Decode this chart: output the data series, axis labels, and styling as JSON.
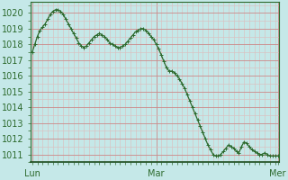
{
  "background_color": "#c5e8e8",
  "plot_bg_color": "#c5e8e8",
  "grid_color_major": "#cc8888",
  "grid_color_minor": "#ddbbbb",
  "line_color": "#2d6a2d",
  "marker_color": "#2d6a2d",
  "tick_label_color": "#2d6a2d",
  "axis_label_color": "#2d6a2d",
  "ylim": [
    1010.5,
    1020.7
  ],
  "yticks": [
    1011,
    1012,
    1013,
    1014,
    1015,
    1016,
    1017,
    1018,
    1019,
    1020
  ],
  "x_tick_positions": [
    0,
    48,
    95
  ],
  "x_label_names": [
    "Lun",
    "Mar",
    "Mer"
  ],
  "n_points": 96,
  "values": [
    1017.5,
    1018.0,
    1018.5,
    1018.9,
    1019.1,
    1019.3,
    1019.6,
    1019.9,
    1020.1,
    1020.2,
    1020.2,
    1020.1,
    1019.9,
    1019.6,
    1019.3,
    1019.0,
    1018.7,
    1018.4,
    1018.1,
    1017.9,
    1017.8,
    1017.9,
    1018.1,
    1018.3,
    1018.5,
    1018.6,
    1018.7,
    1018.6,
    1018.5,
    1018.3,
    1018.1,
    1018.0,
    1017.9,
    1017.8,
    1017.8,
    1017.9,
    1018.0,
    1018.2,
    1018.4,
    1018.6,
    1018.8,
    1018.9,
    1019.0,
    1019.0,
    1018.9,
    1018.7,
    1018.5,
    1018.3,
    1018.0,
    1017.7,
    1017.3,
    1016.9,
    1016.5,
    1016.3,
    1016.3,
    1016.2,
    1016.0,
    1015.8,
    1015.5,
    1015.2,
    1014.8,
    1014.4,
    1014.0,
    1013.6,
    1013.2,
    1012.8,
    1012.4,
    1012.0,
    1011.6,
    1011.3,
    1011.0,
    1010.9,
    1010.9,
    1011.0,
    1011.2,
    1011.4,
    1011.6,
    1011.5,
    1011.4,
    1011.2,
    1011.1,
    1011.5,
    1011.8,
    1011.7,
    1011.5,
    1011.3,
    1011.2,
    1011.1,
    1011.0,
    1011.0,
    1011.1,
    1011.0,
    1010.9,
    1010.9,
    1010.9,
    1010.9
  ]
}
